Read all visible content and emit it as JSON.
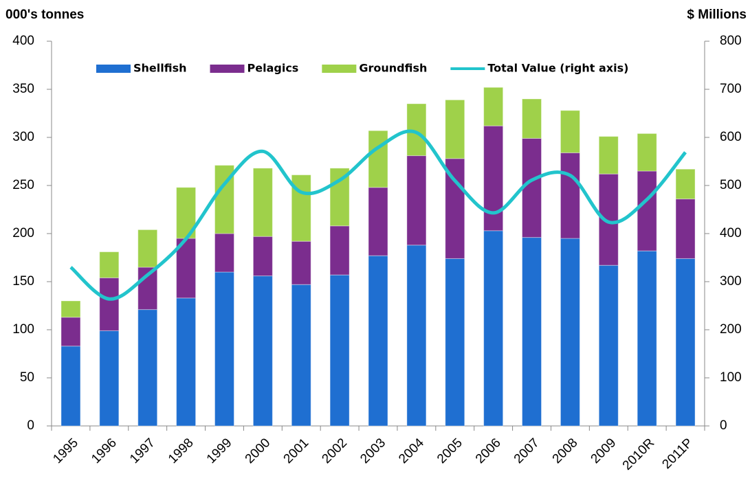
{
  "chart_data": {
    "type": "stacked_bar_line",
    "y_label": "000's tonnes",
    "y2_label": "$ Millions",
    "categories": [
      "1995",
      "1996",
      "1997",
      "1998",
      "1999",
      "2000",
      "2001",
      "2002",
      "2003",
      "2004",
      "2005",
      "2006",
      "2007",
      "2008",
      "2009",
      "2010R",
      "2011P"
    ],
    "series": [
      {
        "name": "Shellfish",
        "color": "#1f6fd1",
        "values": [
          83,
          99,
          121,
          133,
          160,
          156,
          147,
          157,
          177,
          188,
          174,
          203,
          196,
          195,
          167,
          182,
          174
        ]
      },
      {
        "name": "Pelagics",
        "color": "#7b2d8e",
        "values": [
          30,
          55,
          44,
          62,
          40,
          41,
          45,
          51,
          71,
          93,
          104,
          109,
          103,
          89,
          95,
          83,
          62
        ]
      },
      {
        "name": "Groundfish",
        "color": "#9fd14a",
        "values": [
          17,
          27,
          39,
          53,
          71,
          71,
          69,
          60,
          59,
          54,
          61,
          40,
          41,
          44,
          39,
          39,
          31
        ]
      },
      {
        "name": "Total Value (right axis)",
        "color": "#22c4cc",
        "axis": "y2",
        "values": [
          330,
          264,
          314,
          389,
          503,
          571,
          486,
          511,
          579,
          610,
          510,
          443,
          511,
          521,
          424,
          471,
          569
        ]
      }
    ],
    "ylim": [
      0,
      400
    ],
    "yticks": [
      0,
      50,
      100,
      150,
      200,
      250,
      300,
      350,
      400
    ],
    "y2lim": [
      0,
      800
    ],
    "y2ticks": [
      0,
      100,
      200,
      300,
      400,
      500,
      600,
      700,
      800
    ],
    "legend": "top"
  }
}
